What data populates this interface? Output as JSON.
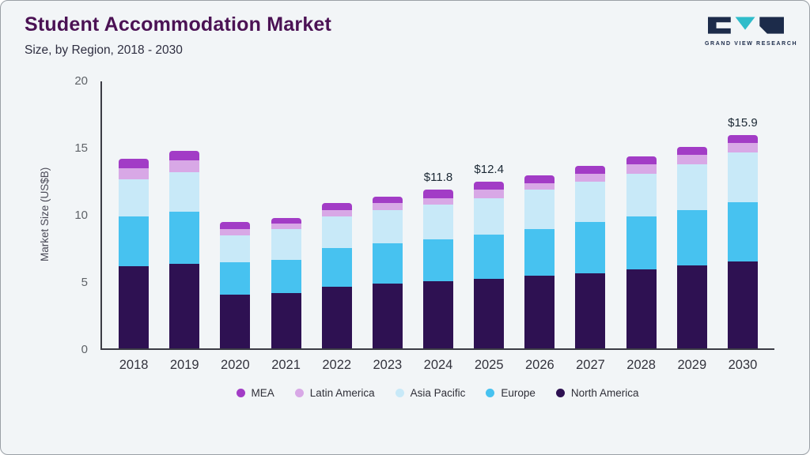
{
  "header": {
    "title": "Student Accommodation Market",
    "subtitle": "Size, by Region, 2018 - 2030"
  },
  "logo": {
    "text": "GRAND VIEW RESEARCH"
  },
  "chart_data": {
    "type": "bar",
    "stacked": true,
    "title": "Student Accommodation Market Size, by Region, 2018 - 2030",
    "xlabel": "",
    "ylabel": "Market Size (US$B)",
    "ylim": [
      0,
      20
    ],
    "yticks": [
      0,
      5,
      10,
      15,
      20
    ],
    "grid": false,
    "legend_position": "bottom",
    "categories": [
      "2018",
      "2019",
      "2020",
      "2021",
      "2022",
      "2023",
      "2024",
      "2025",
      "2026",
      "2027",
      "2028",
      "2029",
      "2030"
    ],
    "series": [
      {
        "name": "North America",
        "color": "#2e1152",
        "values": [
          6.1,
          6.3,
          4.0,
          4.1,
          4.6,
          4.8,
          5.0,
          5.2,
          5.4,
          5.6,
          5.9,
          6.2,
          6.5
        ]
      },
      {
        "name": "Europe",
        "color": "#47c2f0",
        "values": [
          3.7,
          3.9,
          2.4,
          2.5,
          2.9,
          3.0,
          3.1,
          3.3,
          3.5,
          3.8,
          3.9,
          4.1,
          4.4
        ]
      },
      {
        "name": "Asia Pacific",
        "color": "#c8e9f8",
        "values": [
          2.8,
          2.9,
          2.0,
          2.3,
          2.3,
          2.5,
          2.6,
          2.7,
          2.9,
          3.0,
          3.2,
          3.4,
          3.7
        ]
      },
      {
        "name": "Latin America",
        "color": "#d8a8e6",
        "values": [
          0.8,
          0.9,
          0.5,
          0.4,
          0.5,
          0.5,
          0.5,
          0.6,
          0.5,
          0.6,
          0.7,
          0.7,
          0.7
        ]
      },
      {
        "name": "MEA",
        "color": "#a23cc6",
        "values": [
          0.7,
          0.7,
          0.5,
          0.4,
          0.5,
          0.5,
          0.6,
          0.6,
          0.6,
          0.6,
          0.6,
          0.6,
          0.6
        ]
      }
    ],
    "totals": [
      14.1,
      14.7,
      9.4,
      9.7,
      10.8,
      11.3,
      11.8,
      12.4,
      12.9,
      13.6,
      14.3,
      15.0,
      15.9
    ],
    "annotations": [
      {
        "category": "2024",
        "label": "$11.8"
      },
      {
        "category": "2025",
        "label": "$12.4"
      },
      {
        "category": "2030",
        "label": "$15.9"
      }
    ],
    "legend": [
      "MEA",
      "Latin America",
      "Asia Pacific",
      "Europe",
      "North America"
    ]
  }
}
